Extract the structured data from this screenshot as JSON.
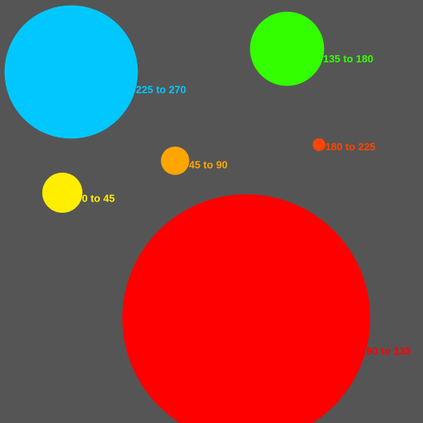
{
  "chart_data": {
    "type": "scatter",
    "background_color": "#555555",
    "series": [
      {
        "label": "0 to 45",
        "value": 1.0,
        "color": "#ffee00"
      },
      {
        "label": "45 to 90",
        "value": 0.5,
        "color": "#ffa500"
      },
      {
        "label": "90 to 135",
        "value": 38.0,
        "color": "#ff0000"
      },
      {
        "label": "135 to 180",
        "value": 3.4,
        "color": "#33ff00"
      },
      {
        "label": "180 to 225",
        "value": 0.1,
        "color": "#ff4500"
      },
      {
        "label": "225 to 270",
        "value": 11.0,
        "color": "#00c8ff"
      }
    ]
  }
}
